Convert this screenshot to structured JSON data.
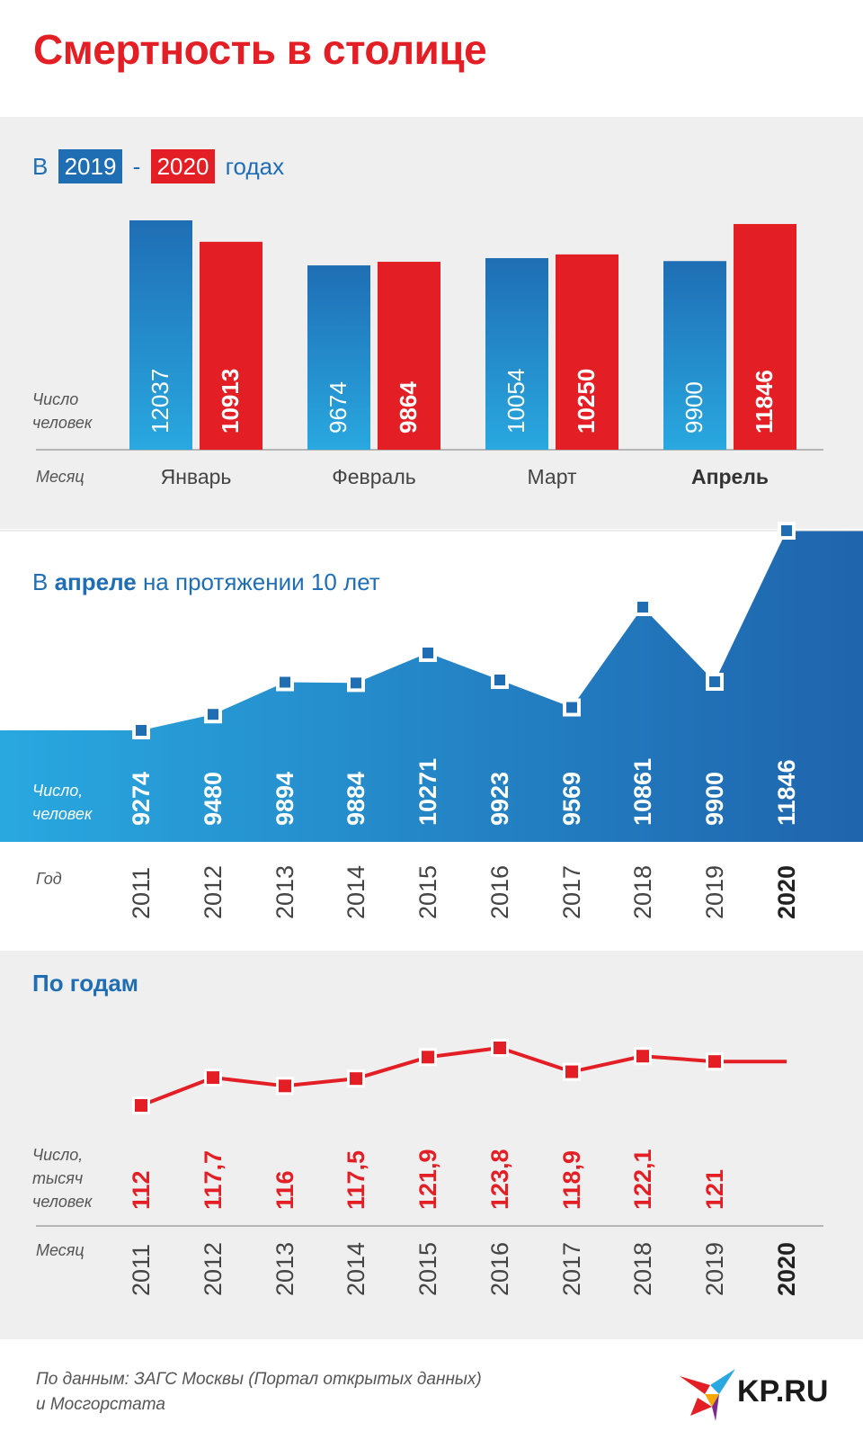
{
  "title": "Смертность в столице",
  "section1": {
    "prefix": "В",
    "year_a": "2019",
    "dash": "-",
    "year_b": "2020",
    "suffix": "годах",
    "value_label_line1": "Число",
    "value_label_line2": "человек",
    "axis_label": "Месяц"
  },
  "section2": {
    "title_prefix": "В",
    "title_bold": "апреле",
    "title_suffix": "на протяжении 10 лет",
    "value_label_line1": "Число,",
    "value_label_line2": "человек",
    "axis_label": "Год"
  },
  "section3": {
    "title": "По годам",
    "value_label_line1": "Число,",
    "value_label_line2": "тысяч",
    "value_label_line3": "человек",
    "axis_label": "Месяц"
  },
  "footer": {
    "source_line1": "По данным: ЗАГС Москвы (Портал открытых данных)",
    "source_line2": "и Мосгорстата",
    "logo": "KP.RU"
  },
  "colors": {
    "red": "#e31e24",
    "blue": "#1f6eb4",
    "light_blue": "#29a8e0",
    "panel": "#efefef"
  },
  "chart_data": [
    {
      "type": "bar",
      "categories": [
        "Январь",
        "Февраль",
        "Март",
        "Апрель"
      ],
      "highlight_category": "Апрель",
      "series": [
        {
          "name": "2019",
          "values": [
            12037,
            9674,
            10054,
            9900
          ]
        },
        {
          "name": "2020",
          "values": [
            10913,
            9864,
            10250,
            11846
          ]
        }
      ],
      "labels": {
        "2019": [
          "12037",
          "9674",
          "10054",
          "9900"
        ],
        "2020": [
          "10913",
          "9864",
          "10250",
          "11846"
        ]
      }
    },
    {
      "type": "area",
      "x": [
        "2011",
        "2012",
        "2013",
        "2014",
        "2015",
        "2016",
        "2017",
        "2018",
        "2019",
        "2020"
      ],
      "highlight_x": "2020",
      "values": [
        9274,
        9480,
        9894,
        9884,
        10271,
        9923,
        9569,
        10861,
        9900,
        11846
      ],
      "labels": [
        "9274",
        "9480",
        "9894",
        "9884",
        "10271",
        "9923",
        "9569",
        "10861",
        "9900",
        "11846"
      ]
    },
    {
      "type": "line",
      "x": [
        "2011",
        "2012",
        "2013",
        "2014",
        "2015",
        "2016",
        "2017",
        "2018",
        "2019",
        "2020"
      ],
      "highlight_x": "2020",
      "values": [
        112,
        117.7,
        116,
        117.5,
        121.9,
        123.8,
        118.9,
        122.1,
        121,
        121
      ],
      "labels": [
        "112",
        "117,7",
        "116",
        "117,5",
        "121,9",
        "123,8",
        "118,9",
        "122,1",
        "121",
        ""
      ]
    }
  ]
}
